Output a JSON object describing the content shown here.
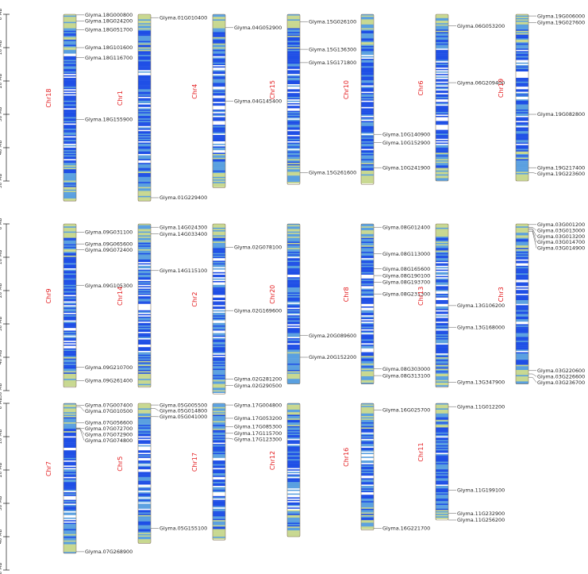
{
  "scale": {
    "unit": "Mb",
    "ticks": [
      0,
      10,
      20,
      30,
      40,
      50
    ]
  },
  "colors": {
    "chr_label": "#e31a1c",
    "density_high": "#1f4fe6",
    "density_mid": "#5aa0e0",
    "density_low": "#c8d890",
    "outline": "#8a7a60",
    "connector": "#555555"
  },
  "rows": [
    {
      "chromosomes": [
        {
          "name": "Chr18",
          "length": 56,
          "genes": [
            {
              "name": "Glyma.18G000800",
              "pos": 0.2
            },
            {
              "name": "Glyma.18G024200",
              "pos": 2.0
            },
            {
              "name": "Glyma.18G051700",
              "pos": 4.6
            },
            {
              "name": "Glyma.18G101600",
              "pos": 10.0
            },
            {
              "name": "Glyma.18G116700",
              "pos": 13.0
            },
            {
              "name": "Glyma.18G155900",
              "pos": 31.5
            }
          ]
        },
        {
          "name": "Chr1",
          "length": 56,
          "genes": [
            {
              "name": "Glyma.01G010400",
              "pos": 1.0
            },
            {
              "name": "Glyma.01G229400",
              "pos": 55.0
            }
          ]
        },
        {
          "name": "Chr4",
          "length": 52,
          "genes": [
            {
              "name": "Glyma.04G052900",
              "pos": 4.0
            },
            {
              "name": "Glyma.04G145400",
              "pos": 26.0
            }
          ]
        },
        {
          "name": "Chr15",
          "length": 51,
          "genes": [
            {
              "name": "Glyma.15G026100",
              "pos": 2.2
            },
            {
              "name": "Glyma.15G136300",
              "pos": 10.5
            },
            {
              "name": "Glyma.15G171800",
              "pos": 14.5
            },
            {
              "name": "Glyma.15G261600",
              "pos": 47.5
            }
          ]
        },
        {
          "name": "Chr10",
          "length": 51,
          "genes": [
            {
              "name": "Glyma.10G140900",
              "pos": 36.0
            },
            {
              "name": "Glyma.10G152900",
              "pos": 38.5
            },
            {
              "name": "Glyma.10G241900",
              "pos": 46.0
            }
          ]
        },
        {
          "name": "Chr6",
          "length": 50,
          "genes": [
            {
              "name": "Glyma.06G053200",
              "pos": 3.5
            },
            {
              "name": "Glyma.06G209400",
              "pos": 20.5
            }
          ]
        },
        {
          "name": "Chr19",
          "length": 50,
          "genes": [
            {
              "name": "Glyma.19G006000",
              "pos": 0.5
            },
            {
              "name": "Glyma.19G027600",
              "pos": 2.5
            },
            {
              "name": "Glyma.19G082800",
              "pos": 30.0
            },
            {
              "name": "Glyma.19G217400",
              "pos": 46.0
            },
            {
              "name": "Glyma.19G223600",
              "pos": 47.5
            }
          ]
        }
      ]
    },
    {
      "chromosomes": [
        {
          "name": "Chr9",
          "length": 49,
          "genes": [
            {
              "name": "Glyma.09G031100",
              "pos": 2.5
            },
            {
              "name": "Glyma.09G065600",
              "pos": 6.0
            },
            {
              "name": "Glyma.09G072400",
              "pos": 7.8
            },
            {
              "name": "Glyma.09G105300",
              "pos": 18.5
            },
            {
              "name": "Glyma.09G210700",
              "pos": 43.0
            },
            {
              "name": "Glyma.09G261400",
              "pos": 47.0
            }
          ]
        },
        {
          "name": "Chr14",
          "length": 49,
          "genes": [
            {
              "name": "Glyma.14G024300",
              "pos": 1.0
            },
            {
              "name": "Glyma.14G033400",
              "pos": 3.0
            },
            {
              "name": "Glyma.14G115100",
              "pos": 14.0
            }
          ]
        },
        {
          "name": "Chr2",
          "length": 51,
          "genes": [
            {
              "name": "Glyma.02G078100",
              "pos": 7.0
            },
            {
              "name": "Glyma.02G169600",
              "pos": 26.0
            },
            {
              "name": "Glyma.02G281200",
              "pos": 46.5
            },
            {
              "name": "Glyma.02G290500",
              "pos": 48.5
            }
          ]
        },
        {
          "name": "Chr20",
          "length": 48,
          "genes": [
            {
              "name": "Glyma.20G089600",
              "pos": 33.5
            },
            {
              "name": "Glyma.20G152200",
              "pos": 40.0
            }
          ]
        },
        {
          "name": "Chr8",
          "length": 48,
          "genes": [
            {
              "name": "Glyma.08G012400",
              "pos": 1.0
            },
            {
              "name": "Glyma.08G113000",
              "pos": 9.0
            },
            {
              "name": "Glyma.08G165600",
              "pos": 13.5
            },
            {
              "name": "Glyma.08G190100",
              "pos": 15.5
            },
            {
              "name": "Glyma.08G193700",
              "pos": 17.5
            },
            {
              "name": "Glyma.08G231300",
              "pos": 21.0
            },
            {
              "name": "Glyma.08G303000",
              "pos": 43.5
            },
            {
              "name": "Glyma.08G313100",
              "pos": 45.5
            }
          ]
        },
        {
          "name": "Chr13",
          "length": 49,
          "genes": [
            {
              "name": "Glyma.13G106200",
              "pos": 24.5
            },
            {
              "name": "Glyma.13G168000",
              "pos": 31.0
            },
            {
              "name": "Glyma.13G347900",
              "pos": 47.5
            }
          ]
        },
        {
          "name": "Chr3",
          "length": 48,
          "genes": [
            {
              "name": "Glyma.03G001200",
              "pos": 0.2
            },
            {
              "name": "Glyma.03G013000",
              "pos": 1.0
            },
            {
              "name": "Glyma.03G013200",
              "pos": 1.4
            },
            {
              "name": "Glyma.03G014700",
              "pos": 1.8
            },
            {
              "name": "Glyma.03G014900",
              "pos": 2.2
            },
            {
              "name": "Glyma.03G220600",
              "pos": 44.0
            },
            {
              "name": "Glyma.03G226600",
              "pos": 45.0
            },
            {
              "name": "Glyma.03G236700",
              "pos": 46.0
            }
          ]
        }
      ]
    },
    {
      "chromosomes": [
        {
          "name": "Chr7",
          "length": 45,
          "genes": [
            {
              "name": "Glyma.07G007400",
              "pos": 0.6
            },
            {
              "name": "Glyma.07G010500",
              "pos": 1.0
            },
            {
              "name": "Glyma.07G056600",
              "pos": 5.8
            },
            {
              "name": "Glyma.07G072700",
              "pos": 7.4
            },
            {
              "name": "Glyma.07G072900",
              "pos": 7.6
            },
            {
              "name": "Glyma.07G074800",
              "pos": 7.8
            },
            {
              "name": "Glyma.07G268900",
              "pos": 44.5
            }
          ]
        },
        {
          "name": "Chr5",
          "length": 42,
          "genes": [
            {
              "name": "Glyma.05G005500",
              "pos": 0.5
            },
            {
              "name": "Glyma.05G014800",
              "pos": 1.5
            },
            {
              "name": "Glyma.05G041000",
              "pos": 4.0
            },
            {
              "name": "Glyma.05G155100",
              "pos": 37.5
            }
          ]
        },
        {
          "name": "Chr17",
          "length": 41,
          "genes": [
            {
              "name": "Glyma.17G004800",
              "pos": 0.5
            },
            {
              "name": "Glyma.17G053200",
              "pos": 4.5
            },
            {
              "name": "Glyma.17G085300",
              "pos": 7.0
            },
            {
              "name": "Glyma.17G115700",
              "pos": 9.0
            },
            {
              "name": "Glyma.17G123300",
              "pos": 10.5
            }
          ]
        },
        {
          "name": "Chr12",
          "length": 40,
          "genes": []
        },
        {
          "name": "Chr16",
          "length": 38,
          "genes": [
            {
              "name": "Glyma.16G025700",
              "pos": 2.0
            },
            {
              "name": "Glyma.16G221700",
              "pos": 37.5
            }
          ]
        },
        {
          "name": "Chr11",
          "length": 35,
          "genes": [
            {
              "name": "Glyma.11G012200",
              "pos": 1.0
            },
            {
              "name": "Glyma.11G199100",
              "pos": 26.0
            },
            {
              "name": "Glyma.11G232900",
              "pos": 33.0
            },
            {
              "name": "Glyma.11G256200",
              "pos": 35.0
            }
          ]
        }
      ]
    }
  ]
}
